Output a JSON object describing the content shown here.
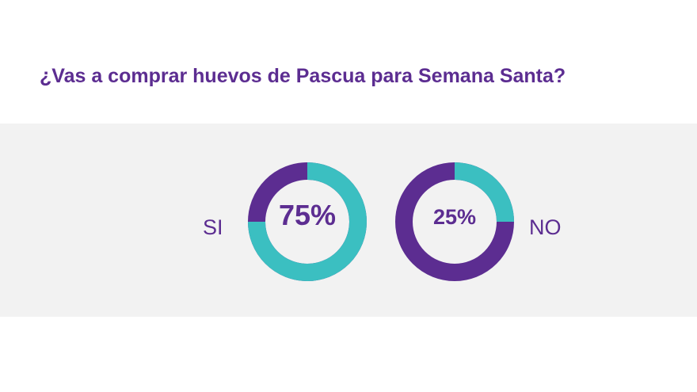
{
  "chart_data": {
    "type": "pie",
    "title": "¿Vas a comprar huevos de Pascua para Semana Santa?",
    "slices": [
      {
        "label": "SI",
        "value": 75,
        "display": "75%"
      },
      {
        "label": "NO",
        "value": 25,
        "display": "25%"
      }
    ],
    "colors": {
      "accent": "#3bbfc1",
      "base": "#5c2d91",
      "text": "#5c2d91",
      "band": "#f2f2f2"
    }
  }
}
